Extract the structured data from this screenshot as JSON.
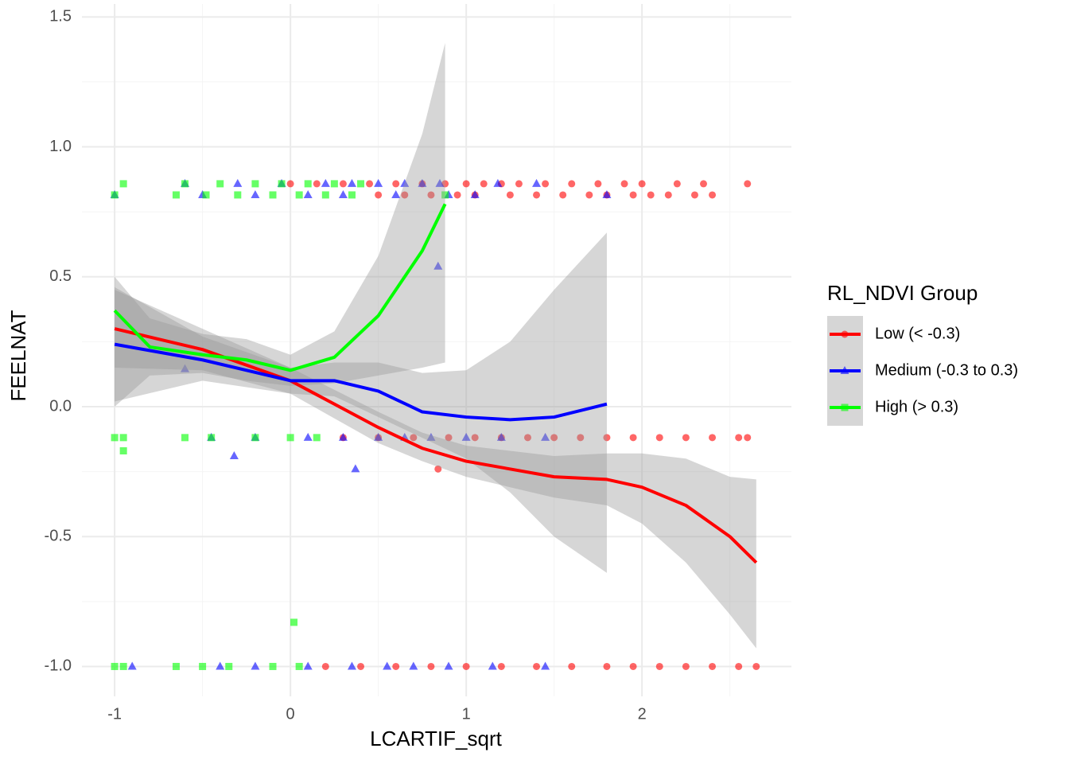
{
  "chart_data": {
    "type": "scatter",
    "x_label": "LCARTIF_sqrt",
    "y_label": "FEELNAT",
    "legend_title": "RL_NDVI Group",
    "legend_position": "right",
    "grid": true,
    "xlim": [
      -1.186,
      2.85
    ],
    "ylim": [
      -1.115,
      1.55
    ],
    "xticks": [
      -1,
      0,
      1,
      2
    ],
    "yticks": [
      {
        "value": -1,
        "label": "-1.0"
      },
      -0.5,
      {
        "value": 0,
        "label": "0.0"
      },
      0.5,
      {
        "value": 1,
        "label": "1.0"
      },
      1.5
    ],
    "x_minor_ticks": [
      -0.5,
      0.5,
      1.5,
      2.5
    ],
    "y_minor_ticks": [
      -0.75,
      -0.25,
      0.25,
      0.75,
      1.25
    ],
    "band_color": "#999999",
    "series": [
      {
        "name": "Low (< -0.3)",
        "color": "#ff0000",
        "marker": "circle",
        "points": {
          "x": [
            0.0,
            0.15,
            0.3,
            0.45,
            0.6,
            0.75,
            0.88,
            1.0,
            1.1,
            1.2,
            1.3,
            1.45,
            1.6,
            1.75,
            1.9,
            2.0,
            2.2,
            2.35,
            2.6,
            0.5,
            0.65,
            0.8,
            0.95,
            1.05,
            1.25,
            1.4,
            1.55,
            1.7,
            1.8,
            1.95,
            2.05,
            2.15,
            2.3,
            2.4,
            0.3,
            0.5,
            0.7,
            0.9,
            1.05,
            1.2,
            1.35,
            1.5,
            1.65,
            1.8,
            1.95,
            2.1,
            2.25,
            2.4,
            2.55,
            2.6,
            0.84,
            0.2,
            0.4,
            0.6,
            0.8,
            1.0,
            1.2,
            1.4,
            1.6,
            1.8,
            1.95,
            2.1,
            2.25,
            2.4,
            2.55,
            2.65
          ],
          "y": [
            0.858,
            0.858,
            0.858,
            0.858,
            0.858,
            0.858,
            0.858,
            0.858,
            0.858,
            0.858,
            0.858,
            0.858,
            0.858,
            0.858,
            0.858,
            0.858,
            0.858,
            0.858,
            0.858,
            0.815,
            0.815,
            0.815,
            0.815,
            0.815,
            0.815,
            0.815,
            0.815,
            0.815,
            0.815,
            0.815,
            0.815,
            0.815,
            0.815,
            0.815,
            -0.119,
            -0.119,
            -0.119,
            -0.119,
            -0.119,
            -0.119,
            -0.119,
            -0.119,
            -0.119,
            -0.119,
            -0.119,
            -0.119,
            -0.119,
            -0.119,
            -0.119,
            -0.119,
            -0.24,
            -1,
            -1,
            -1,
            -1,
            -1,
            -1,
            -1,
            -1,
            -1,
            -1,
            -1,
            -1,
            -1,
            -1,
            -1
          ]
        },
        "smooth": {
          "x": [
            -1,
            -0.5,
            0,
            0.5,
            0.75,
            1.0,
            1.5,
            1.8,
            2.0,
            2.25,
            2.5,
            2.65
          ],
          "y": [
            0.3,
            0.22,
            0.1,
            -0.08,
            -0.16,
            -0.21,
            -0.27,
            -0.28,
            -0.31,
            -0.38,
            -0.5,
            -0.6
          ],
          "lower": [
            0.15,
            0.14,
            0.05,
            -0.14,
            -0.21,
            -0.27,
            -0.35,
            -0.38,
            -0.45,
            -0.6,
            -0.8,
            -0.93
          ],
          "upper": [
            0.45,
            0.3,
            0.15,
            -0.02,
            -0.1,
            -0.15,
            -0.19,
            -0.18,
            -0.18,
            -0.2,
            -0.27,
            -0.28
          ]
        }
      },
      {
        "name": "Medium (-0.3 to 0.3)",
        "color": "#0000ff",
        "marker": "triangle",
        "points": {
          "x": [
            -0.6,
            -0.3,
            -0.05,
            0.2,
            0.35,
            0.5,
            0.65,
            0.75,
            0.85,
            1.18,
            1.4,
            -1.0,
            -0.5,
            -0.2,
            0.1,
            0.3,
            0.6,
            0.9,
            1.05,
            1.8,
            0.84,
            -0.6,
            -0.45,
            -0.2,
            0.1,
            0.3,
            0.5,
            0.65,
            0.8,
            1.0,
            1.2,
            1.45,
            -0.32,
            0.37,
            -0.9,
            -0.4,
            -0.2,
            0.1,
            0.35,
            0.55,
            0.7,
            0.9,
            1.15,
            1.45
          ],
          "y": [
            0.858,
            0.858,
            0.858,
            0.858,
            0.858,
            0.858,
            0.858,
            0.858,
            0.858,
            0.858,
            0.858,
            0.815,
            0.815,
            0.815,
            0.815,
            0.815,
            0.815,
            0.815,
            0.815,
            0.815,
            0.54,
            0.145,
            -0.119,
            -0.119,
            -0.119,
            -0.119,
            -0.119,
            -0.119,
            -0.119,
            -0.119,
            -0.119,
            -0.119,
            -0.19,
            -0.24,
            -1,
            -1,
            -1,
            -1,
            -1,
            -1,
            -1,
            -1,
            -1,
            -1
          ]
        },
        "smooth": {
          "x": [
            -1,
            -0.5,
            0,
            0.25,
            0.5,
            0.75,
            1.0,
            1.25,
            1.5,
            1.8
          ],
          "y": [
            0.24,
            0.18,
            0.1,
            0.1,
            0.06,
            -0.02,
            -0.04,
            -0.05,
            -0.04,
            0.01
          ],
          "lower": [
            0.02,
            0.1,
            0.05,
            0.04,
            -0.04,
            -0.12,
            -0.2,
            -0.33,
            -0.5,
            -0.64
          ],
          "upper": [
            0.46,
            0.27,
            0.15,
            0.17,
            0.17,
            0.13,
            0.14,
            0.25,
            0.45,
            0.67
          ]
        }
      },
      {
        "name": "High (> 0.3)",
        "color": "#00ff00",
        "marker": "square",
        "points": {
          "x": [
            -0.95,
            -0.6,
            -0.4,
            -0.2,
            -0.05,
            0.1,
            0.25,
            0.4,
            -1.0,
            -0.65,
            -0.48,
            -0.3,
            -0.1,
            0.05,
            0.2,
            0.35,
            0.88,
            -1.0,
            -0.95,
            -0.6,
            -0.45,
            -0.2,
            0.0,
            0.15,
            -0.95,
            0.02,
            -1.0,
            -0.95,
            -0.65,
            -0.5,
            -0.35,
            -0.1,
            0.05
          ],
          "y": [
            0.858,
            0.858,
            0.858,
            0.858,
            0.858,
            0.858,
            0.858,
            0.858,
            0.815,
            0.815,
            0.815,
            0.815,
            0.815,
            0.815,
            0.815,
            0.815,
            0.815,
            -0.119,
            -0.119,
            -0.119,
            -0.119,
            -0.119,
            -0.119,
            -0.119,
            -0.17,
            -0.83,
            -1,
            -1,
            -1,
            -1,
            -1,
            -1,
            -1
          ]
        },
        "smooth": {
          "x": [
            -1,
            -0.8,
            -0.5,
            -0.25,
            0,
            0.25,
            0.5,
            0.75,
            0.88
          ],
          "y": [
            0.37,
            0.23,
            0.2,
            0.18,
            0.14,
            0.19,
            0.35,
            0.6,
            0.78
          ],
          "lower": [
            0.0,
            0.12,
            0.13,
            0.1,
            0.08,
            0.09,
            0.12,
            0.15,
            0.17
          ],
          "upper": [
            0.5,
            0.34,
            0.28,
            0.26,
            0.2,
            0.29,
            0.58,
            1.05,
            1.4
          ]
        }
      }
    ]
  }
}
